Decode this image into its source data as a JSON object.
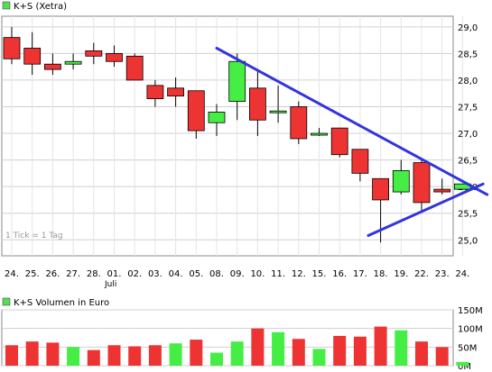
{
  "chart_data": [
    {
      "type": "candlestick",
      "legend": {
        "label": "K+S (Xetra)",
        "color": "#55dd55"
      },
      "ylim": [
        24.7,
        29.2
      ],
      "y_ticks": [
        "29,0",
        "28,5",
        "28,0",
        "27,5",
        "27,0",
        "26,5",
        "26,0",
        "25,5",
        "25,0"
      ],
      "y_tick_values": [
        29.0,
        28.5,
        28.0,
        27.5,
        27.0,
        26.5,
        26.0,
        25.5,
        25.0
      ],
      "categories": [
        "24.",
        "25.",
        "26.",
        "27.",
        "28.",
        "01.",
        "02.",
        "03.",
        "04.",
        "05.",
        "08.",
        "09.",
        "10.",
        "11.",
        "12.",
        "15.",
        "16.",
        "17.",
        "18.",
        "19.",
        "22.",
        "23.",
        "24."
      ],
      "month_label": "Juli",
      "note": "1 Tick = 1 Tag",
      "up_color": "#44ee44",
      "down_color": "#ee3333",
      "candles": [
        {
          "open": 28.8,
          "high": 29.0,
          "low": 28.3,
          "close": 28.4
        },
        {
          "open": 28.6,
          "high": 28.9,
          "low": 28.1,
          "close": 28.3
        },
        {
          "open": 28.3,
          "high": 28.5,
          "low": 28.1,
          "close": 28.2
        },
        {
          "open": 28.3,
          "high": 28.5,
          "low": 28.2,
          "close": 28.35
        },
        {
          "open": 28.55,
          "high": 28.7,
          "low": 28.3,
          "close": 28.45
        },
        {
          "open": 28.5,
          "high": 28.65,
          "low": 28.25,
          "close": 28.35
        },
        {
          "open": 28.45,
          "high": 28.5,
          "low": 28.0,
          "close": 28.0
        },
        {
          "open": 27.9,
          "high": 28.0,
          "low": 27.5,
          "close": 27.65
        },
        {
          "open": 27.85,
          "high": 28.05,
          "low": 27.5,
          "close": 27.7
        },
        {
          "open": 27.8,
          "high": 27.8,
          "low": 26.9,
          "close": 27.05
        },
        {
          "open": 27.2,
          "high": 27.55,
          "low": 26.95,
          "close": 27.4
        },
        {
          "open": 27.6,
          "high": 28.5,
          "low": 27.25,
          "close": 28.35
        },
        {
          "open": 27.85,
          "high": 28.2,
          "low": 26.95,
          "close": 27.25
        },
        {
          "open": 27.42,
          "high": 27.9,
          "low": 27.2,
          "close": 27.42
        },
        {
          "open": 27.5,
          "high": 27.6,
          "low": 26.8,
          "close": 26.9
        },
        {
          "open": 27.0,
          "high": 27.1,
          "low": 26.95,
          "close": 27.0
        },
        {
          "open": 27.1,
          "high": 27.1,
          "low": 26.55,
          "close": 26.6
        },
        {
          "open": 26.7,
          "high": 26.7,
          "low": 26.1,
          "close": 26.25
        },
        {
          "open": 26.15,
          "high": 26.15,
          "low": 24.95,
          "close": 25.75
        },
        {
          "open": 25.9,
          "high": 26.5,
          "low": 25.85,
          "close": 26.3
        },
        {
          "open": 26.45,
          "high": 26.5,
          "low": 25.55,
          "close": 25.7
        },
        {
          "open": 25.95,
          "high": 26.15,
          "low": 25.85,
          "close": 25.9
        },
        {
          "open": 25.95,
          "high": 26.05,
          "low": 25.95,
          "close": 26.05
        }
      ],
      "trendlines": [
        {
          "from_index": 10,
          "from_value": 28.6,
          "to_index": 23.2,
          "to_value": 25.85,
          "color": "#3333dd"
        },
        {
          "from_index": 17.4,
          "from_value": 25.08,
          "to_index": 23.0,
          "to_value": 26.05,
          "color": "#3333dd"
        }
      ]
    },
    {
      "type": "bar",
      "legend": {
        "label": "K+S Volumen in Euro",
        "color": "#55dd55"
      },
      "ylim": [
        0,
        150
      ],
      "y_ticks": [
        "150M",
        "100M",
        "50M",
        "0M"
      ],
      "y_tick_values": [
        150,
        100,
        50,
        0
      ],
      "values": [
        55,
        65,
        62,
        50,
        42,
        55,
        52,
        55,
        60,
        70,
        35,
        65,
        100,
        90,
        72,
        45,
        80,
        78,
        105,
        95,
        65,
        50,
        10
      ],
      "colors": [
        "#ee3333",
        "#ee3333",
        "#ee3333",
        "#44ee44",
        "#ee3333",
        "#ee3333",
        "#ee3333",
        "#ee3333",
        "#44ee44",
        "#ee3333",
        "#44ee44",
        "#44ee44",
        "#ee3333",
        "#44ee44",
        "#ee3333",
        "#44ee44",
        "#ee3333",
        "#ee3333",
        "#ee3333",
        "#44ee44",
        "#ee3333",
        "#ee3333",
        "#44ee44"
      ]
    }
  ]
}
